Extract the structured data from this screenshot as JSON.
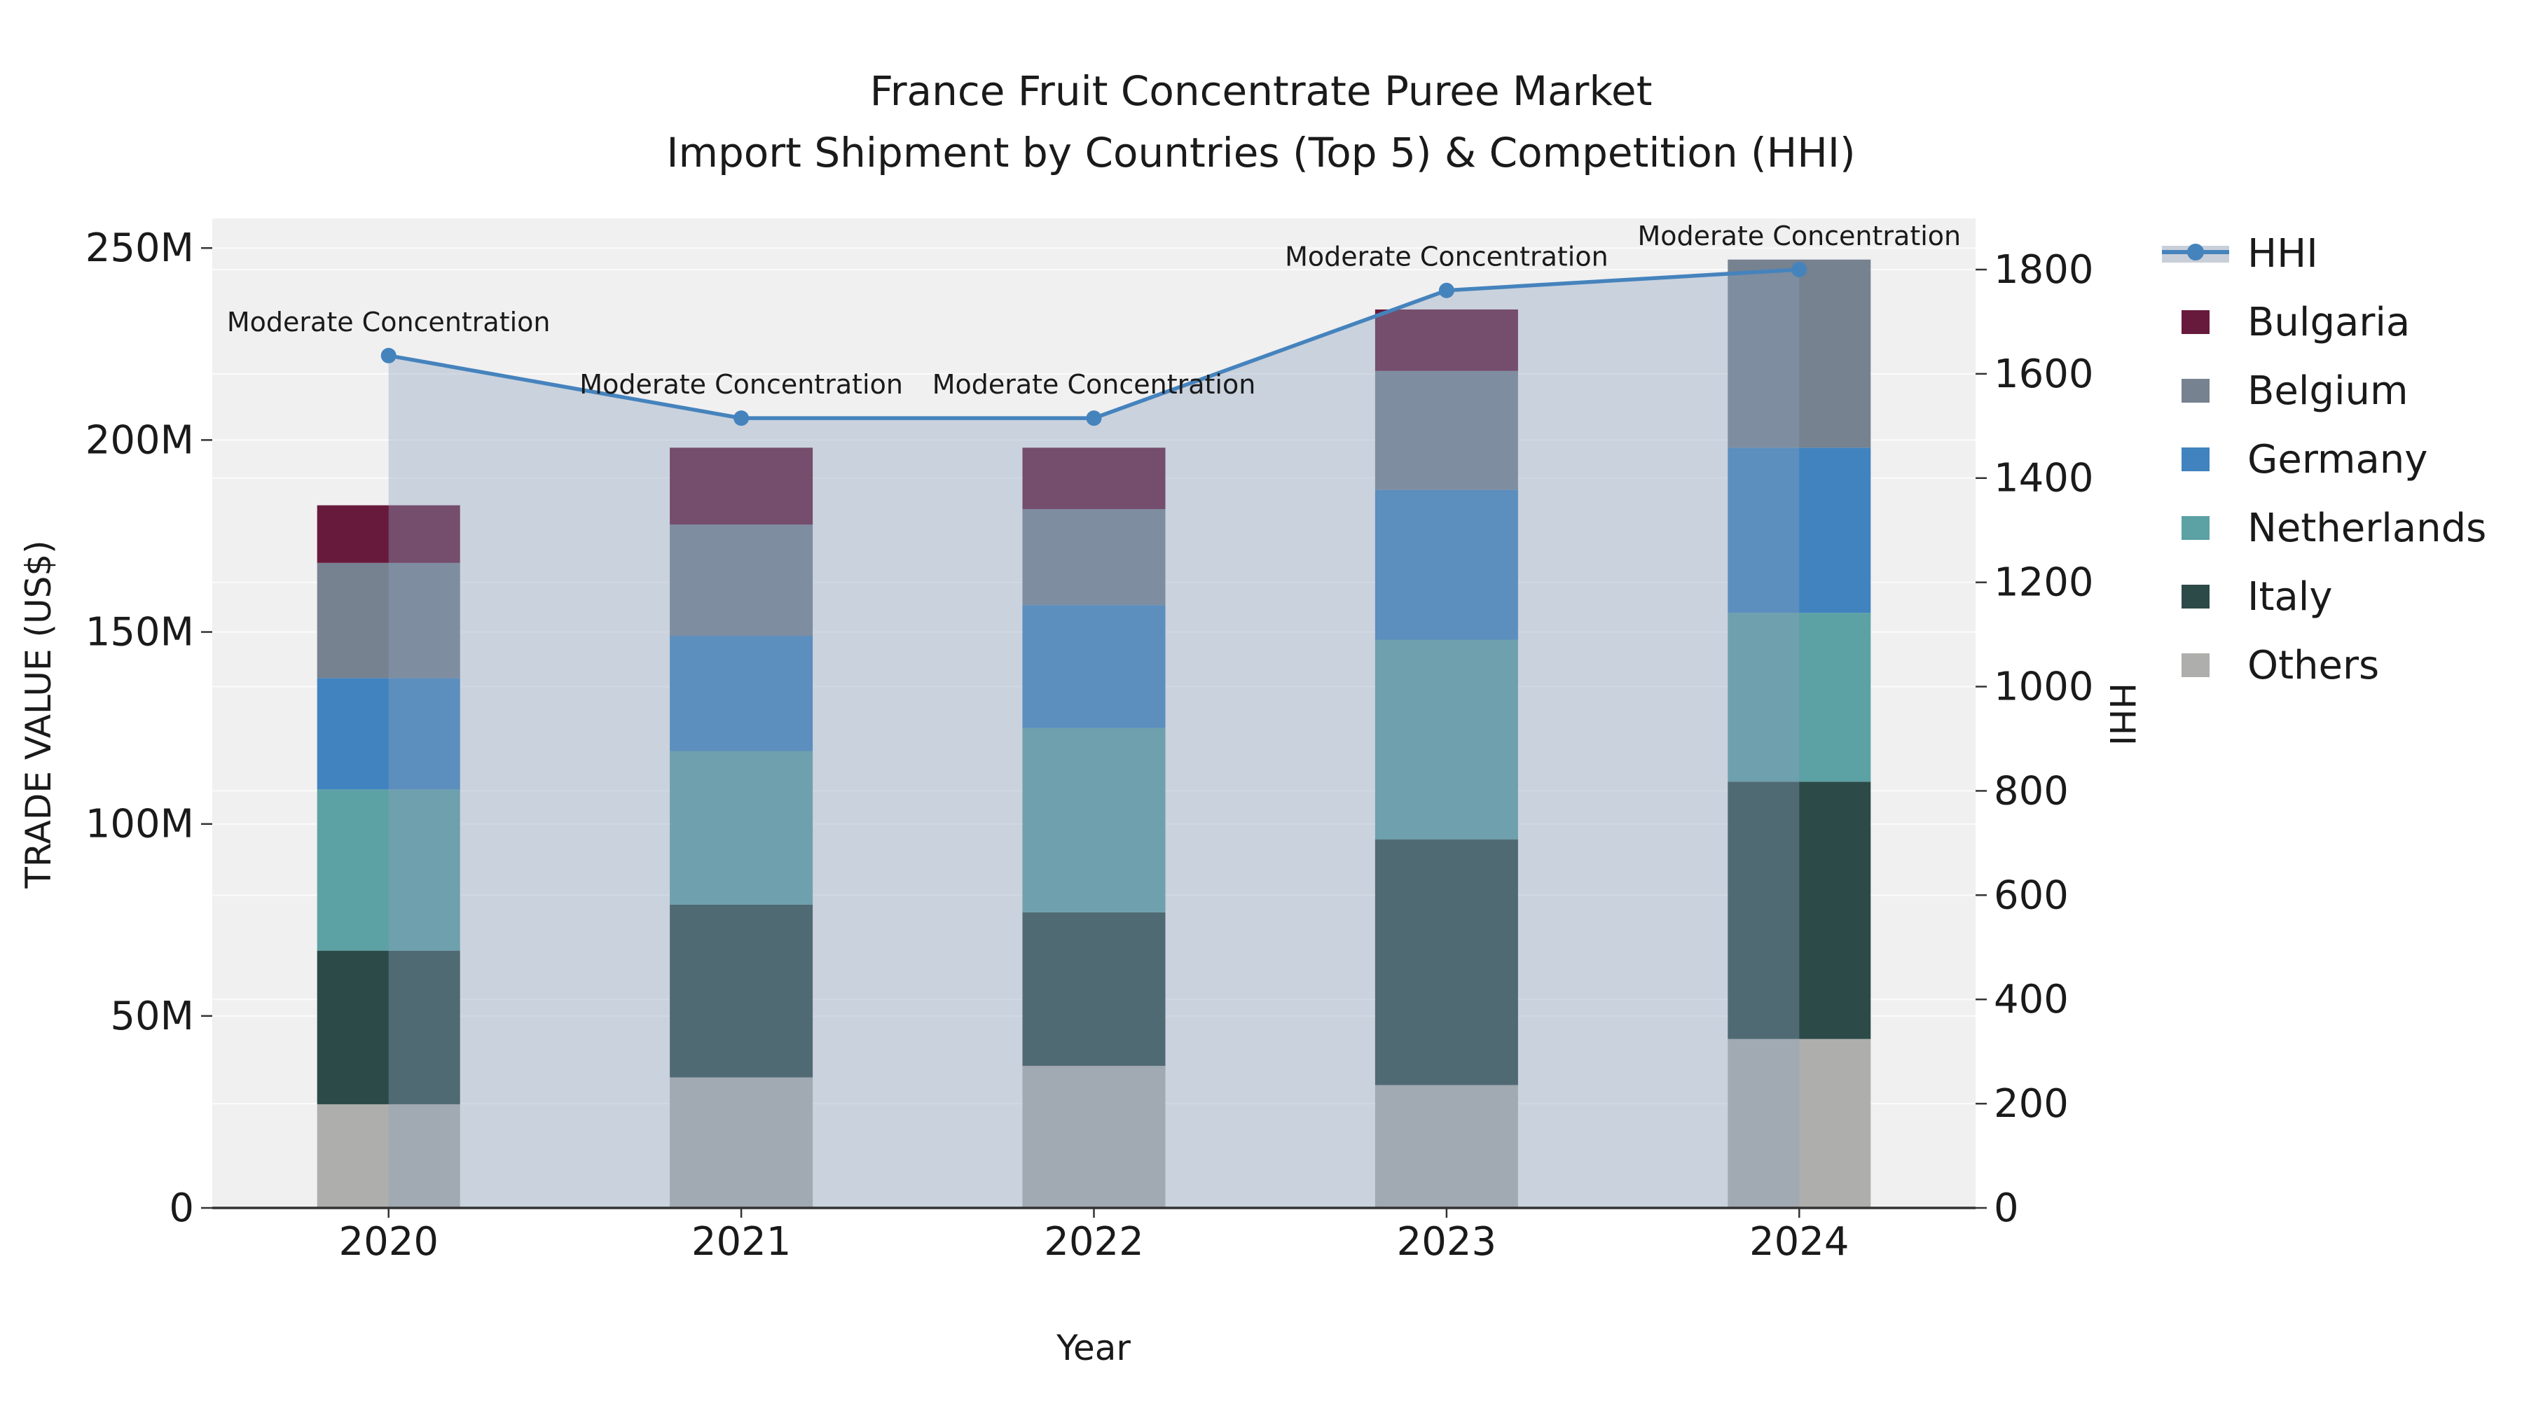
{
  "title": {
    "line1": "France Fruit Concentrate Puree Market",
    "line2": "Import Shipment by Countries (Top 5) & Competition (HHI)"
  },
  "axes": {
    "x_title": "Year",
    "y_left_title": "TRADE VALUE (US$)",
    "y_right_title": "HHI",
    "y_left_ticks": [
      {
        "value": 0,
        "label": "0"
      },
      {
        "value": 50,
        "label": "50M"
      },
      {
        "value": 100,
        "label": "100M"
      },
      {
        "value": 150,
        "label": "150M"
      },
      {
        "value": 200,
        "label": "200M"
      },
      {
        "value": 250,
        "label": "250M"
      }
    ],
    "y_right_ticks": [
      {
        "value": 0,
        "label": "0"
      },
      {
        "value": 200,
        "label": "200"
      },
      {
        "value": 400,
        "label": "400"
      },
      {
        "value": 600,
        "label": "600"
      },
      {
        "value": 800,
        "label": "800"
      },
      {
        "value": 1000,
        "label": "1000"
      },
      {
        "value": 1200,
        "label": "1200"
      },
      {
        "value": 1400,
        "label": "1400"
      },
      {
        "value": 1600,
        "label": "1600"
      },
      {
        "value": 1800,
        "label": "1800"
      }
    ]
  },
  "legend": {
    "items": [
      {
        "label": "HHI",
        "color": "#4583bd",
        "kind": "line",
        "band_color": "#c9cfd9"
      },
      {
        "label": "Bulgaria",
        "color": "#681a3c",
        "kind": "swatch"
      },
      {
        "label": "Belgium",
        "color": "#76828f",
        "kind": "swatch"
      },
      {
        "label": "Germany",
        "color": "#4083bf",
        "kind": "swatch"
      },
      {
        "label": "Netherlands",
        "color": "#5ca1a4",
        "kind": "swatch"
      },
      {
        "label": "Italy",
        "color": "#2c4a47",
        "kind": "swatch"
      },
      {
        "label": "Others",
        "color": "#aeaeac",
        "kind": "swatch"
      }
    ]
  },
  "colors": {
    "plot_background": "#f0f0f0",
    "figure_background": "#ffffff",
    "gridline": "#fbfbfb",
    "axis_spine": "#333333",
    "hhi_line": "#4583bd",
    "hhi_area_fill": "rgba(139,160,188,0.38)",
    "text": "#1a1a1a"
  },
  "chart_data": {
    "type": "bar+line",
    "title": "France Fruit Concentrate Puree Market — Import Shipment by Countries (Top 5) & Competition (HHI)",
    "xlabel": "Year",
    "ylabel_left": "TRADE VALUE (US$)",
    "ylabel_right": "HHI",
    "categories": [
      "2020",
      "2021",
      "2022",
      "2023",
      "2024"
    ],
    "unit": "M US$",
    "stack_order_bottom_to_top": [
      "Others",
      "Italy",
      "Netherlands",
      "Germany",
      "Belgium",
      "Bulgaria"
    ],
    "series": [
      {
        "name": "Others",
        "color": "#aeaeac",
        "values": [
          27,
          34,
          37,
          32,
          44
        ]
      },
      {
        "name": "Italy",
        "color": "#2c4a47",
        "values": [
          40,
          45,
          40,
          64,
          67
        ]
      },
      {
        "name": "Netherlands",
        "color": "#5ca1a4",
        "values": [
          42,
          40,
          48,
          52,
          44
        ]
      },
      {
        "name": "Germany",
        "color": "#4083bf",
        "values": [
          29,
          30,
          32,
          39,
          43
        ]
      },
      {
        "name": "Belgium",
        "color": "#76828f",
        "values": [
          30,
          29,
          25,
          31,
          49
        ]
      },
      {
        "name": "Bulgaria",
        "color": "#681a3c",
        "values": [
          15,
          20,
          16,
          16,
          0
        ]
      }
    ],
    "bar_totals": [
      183,
      198,
      198,
      234,
      247
    ],
    "line": {
      "name": "HHI",
      "color": "#4583bd",
      "values": [
        1635,
        1515,
        1515,
        1760,
        1800
      ],
      "area_fill": "rgba(139,160,188,0.38)",
      "annotations": [
        "Moderate Concentration",
        "Moderate Concentration",
        "Moderate Concentration",
        "Moderate Concentration",
        "Moderate Concentration"
      ]
    },
    "y_left": {
      "min": 0,
      "max": 257.7,
      "grid_values": [
        50,
        100,
        150,
        200,
        250
      ]
    },
    "y_right": {
      "min": 0,
      "max": 1898,
      "grid_values": [
        200,
        400,
        600,
        800,
        1000,
        1200,
        1400,
        1600,
        1800
      ]
    },
    "grid": true,
    "legend_position": "right"
  }
}
